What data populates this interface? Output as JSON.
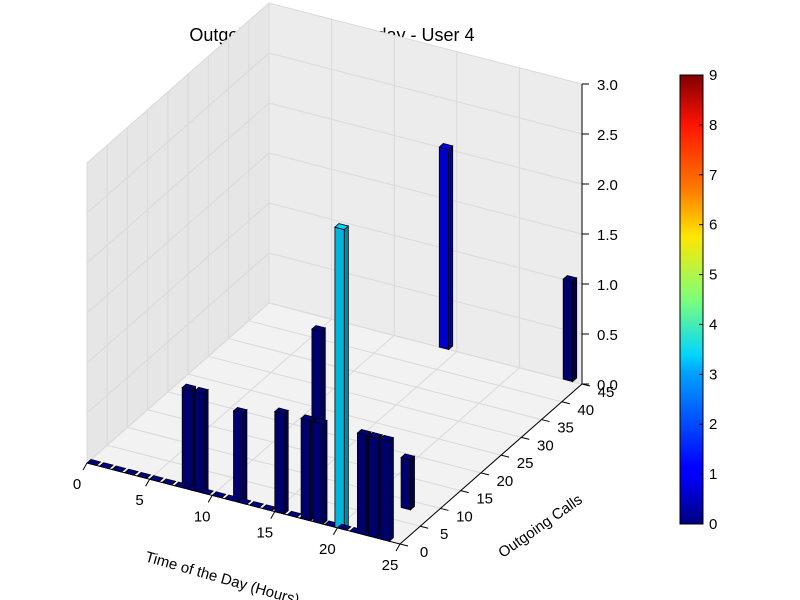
{
  "chart_data": {
    "type": "bar3d",
    "title": "Outgoing Calls on Tuesday - User 4",
    "xlabel": "Time of the Day (Hours)",
    "ylabel": "Outgoing Calls",
    "zlabel": "",
    "xlim": [
      0,
      25
    ],
    "ylim": [
      0,
      45
    ],
    "zlim": [
      0,
      3
    ],
    "x_ticks": [
      "0",
      "5",
      "10",
      "15",
      "20",
      "25"
    ],
    "y_ticks": [
      "0",
      "5",
      "10",
      "15",
      "20",
      "25",
      "30",
      "35",
      "40",
      "45"
    ],
    "z_ticks": [
      "0.0",
      "0.5",
      "1.0",
      "1.5",
      "2.0",
      "2.5",
      "3.0"
    ],
    "grid": true,
    "colormap": "jet",
    "colorbar": {
      "min": 0,
      "max": 9,
      "ticks": [
        "0",
        "1",
        "2",
        "3",
        "4",
        "5",
        "6",
        "7",
        "8",
        "9"
      ]
    },
    "bars": [
      {
        "x": 0,
        "y": 0,
        "z": 0.0,
        "c": 0
      },
      {
        "x": 1,
        "y": 0,
        "z": 0.0,
        "c": 0
      },
      {
        "x": 2,
        "y": 0,
        "z": 0.0,
        "c": 0
      },
      {
        "x": 3,
        "y": 0,
        "z": 0.0,
        "c": 0
      },
      {
        "x": 4,
        "y": 0,
        "z": 0.0,
        "c": 0
      },
      {
        "x": 5,
        "y": 0,
        "z": 0.0,
        "c": 0
      },
      {
        "x": 6,
        "y": 0,
        "z": 0.0,
        "c": 0
      },
      {
        "x": 7,
        "y": 0,
        "z": 0.0,
        "c": 0
      },
      {
        "x": 8,
        "y": 0,
        "z": 0.0,
        "c": 0
      },
      {
        "x": 9,
        "y": 0,
        "z": 0.0,
        "c": 0
      },
      {
        "x": 10,
        "y": 0,
        "z": 0.0,
        "c": 0
      },
      {
        "x": 11,
        "y": 0,
        "z": 0.0,
        "c": 0
      },
      {
        "x": 12,
        "y": 0,
        "z": 0.0,
        "c": 0
      },
      {
        "x": 13,
        "y": 0,
        "z": 0.0,
        "c": 0
      },
      {
        "x": 14,
        "y": 0,
        "z": 0.0,
        "c": 0
      },
      {
        "x": 15,
        "y": 0,
        "z": 0.0,
        "c": 0
      },
      {
        "x": 16,
        "y": 0,
        "z": 0.0,
        "c": 0
      },
      {
        "x": 17,
        "y": 0,
        "z": 0.0,
        "c": 0
      },
      {
        "x": 18,
        "y": 0,
        "z": 0.0,
        "c": 0
      },
      {
        "x": 19,
        "y": 0,
        "z": 0.0,
        "c": 0
      },
      {
        "x": 20,
        "y": 0,
        "z": 0.0,
        "c": 0
      },
      {
        "x": 21,
        "y": 0,
        "z": 0.0,
        "c": 0
      },
      {
        "x": 22,
        "y": 0,
        "z": 0.0,
        "c": 0
      },
      {
        "x": 23,
        "y": 0,
        "z": 0.0,
        "c": 0
      },
      {
        "x": 7.6,
        "y": 0,
        "z": 1.0,
        "c": 0
      },
      {
        "x": 8.6,
        "y": 0,
        "z": 1.0,
        "c": 0
      },
      {
        "x": 11.7,
        "y": 0,
        "z": 0.9,
        "c": 0
      },
      {
        "x": 15,
        "y": 0,
        "z": 1.0,
        "c": 0
      },
      {
        "x": 17.1,
        "y": 0,
        "z": 1.0,
        "c": 0
      },
      {
        "x": 18.1,
        "y": 0,
        "z": 1.0,
        "c": 0
      },
      {
        "x": 19.8,
        "y": 0,
        "z": 3.0,
        "c": 3
      },
      {
        "x": 21.6,
        "y": 0,
        "z": 1.0,
        "c": 0
      },
      {
        "x": 22.5,
        "y": 0,
        "z": 1.0,
        "c": 0
      },
      {
        "x": 23.4,
        "y": 0,
        "z": 1.0,
        "c": 0
      },
      {
        "x": 22.5,
        "y": 8,
        "z": 0.5,
        "c": 0
      },
      {
        "x": 11.5,
        "y": 20,
        "z": 1.0,
        "c": 0
      },
      {
        "x": 13.6,
        "y": 45,
        "z": 2.0,
        "c": 1
      },
      {
        "x": 23.5,
        "y": 45,
        "z": 1.0,
        "c": 0
      }
    ]
  }
}
